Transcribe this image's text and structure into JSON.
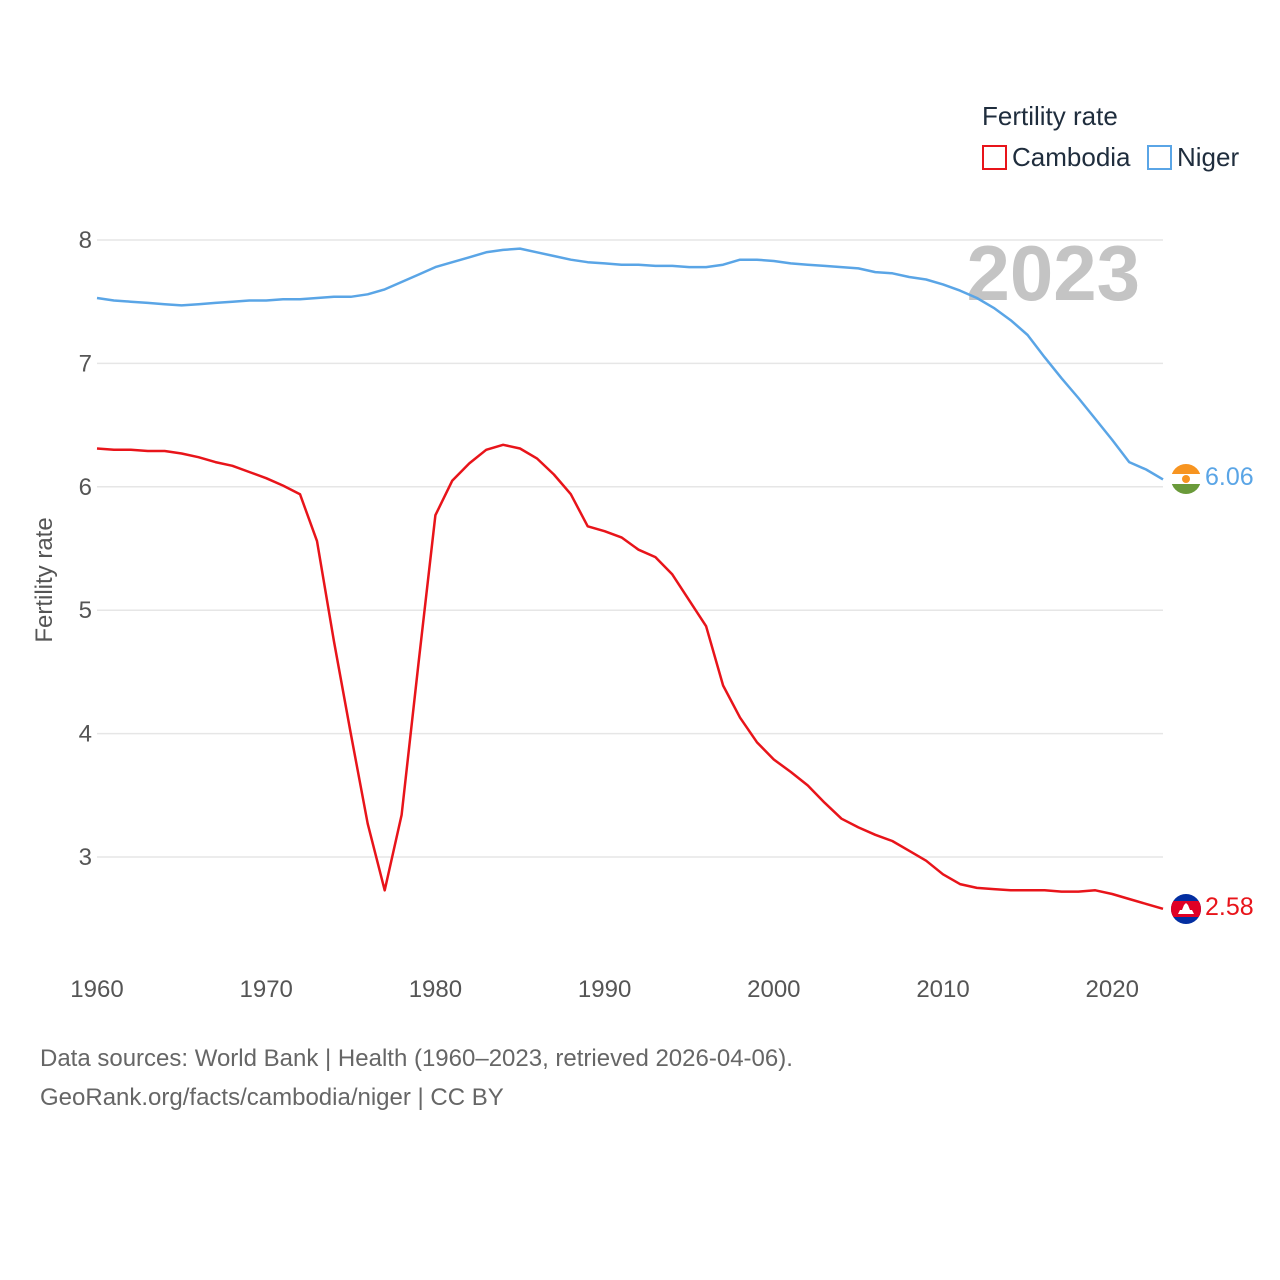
{
  "chart_data": {
    "type": "line",
    "title": "",
    "legend_title": "Fertility rate",
    "year_label": "2023",
    "xlabel": "",
    "ylabel": "Fertility rate",
    "xlim": [
      1960,
      2023
    ],
    "ylim": [
      2.4,
      8.0
    ],
    "x_ticks": [
      1960,
      1970,
      1980,
      1990,
      2000,
      2010,
      2020
    ],
    "y_ticks": [
      3,
      4,
      5,
      6,
      7,
      8
    ],
    "legend_position": "top-right",
    "x": [
      1960,
      1961,
      1962,
      1963,
      1964,
      1965,
      1966,
      1967,
      1968,
      1969,
      1970,
      1971,
      1972,
      1973,
      1974,
      1975,
      1976,
      1977,
      1978,
      1979,
      1980,
      1981,
      1982,
      1983,
      1984,
      1985,
      1986,
      1987,
      1988,
      1989,
      1990,
      1991,
      1992,
      1993,
      1994,
      1995,
      1996,
      1997,
      1998,
      1999,
      2000,
      2001,
      2002,
      2003,
      2004,
      2005,
      2006,
      2007,
      2008,
      2009,
      2010,
      2011,
      2012,
      2013,
      2014,
      2015,
      2016,
      2017,
      2018,
      2019,
      2020,
      2021,
      2022,
      2023
    ],
    "series": [
      {
        "name": "Cambodia",
        "color": "#e8141a",
        "end_label": "2.58",
        "flag": "cambodia-flag",
        "values": [
          6.31,
          6.3,
          6.3,
          6.29,
          6.29,
          6.27,
          6.24,
          6.2,
          6.17,
          6.12,
          6.07,
          6.01,
          5.94,
          5.56,
          4.75,
          4.0,
          3.27,
          2.73,
          3.34,
          4.57,
          5.77,
          6.05,
          6.19,
          6.3,
          6.34,
          6.31,
          6.23,
          6.1,
          5.94,
          5.68,
          5.64,
          5.59,
          5.49,
          5.43,
          5.29,
          5.08,
          4.87,
          4.39,
          4.13,
          3.93,
          3.79,
          3.69,
          3.58,
          3.44,
          3.31,
          3.24,
          3.18,
          3.13,
          3.05,
          2.97,
          2.86,
          2.78,
          2.75,
          2.74,
          2.73,
          2.73,
          2.73,
          2.72,
          2.72,
          2.73,
          2.7,
          2.66,
          2.62,
          2.58
        ]
      },
      {
        "name": "Niger",
        "color": "#5aa5e6",
        "end_label": "6.06",
        "flag": "niger-flag",
        "values": [
          7.53,
          7.51,
          7.5,
          7.49,
          7.48,
          7.47,
          7.48,
          7.49,
          7.5,
          7.51,
          7.51,
          7.52,
          7.52,
          7.53,
          7.54,
          7.54,
          7.56,
          7.6,
          7.66,
          7.72,
          7.78,
          7.82,
          7.86,
          7.9,
          7.92,
          7.93,
          7.9,
          7.87,
          7.84,
          7.82,
          7.81,
          7.8,
          7.8,
          7.79,
          7.79,
          7.78,
          7.78,
          7.8,
          7.84,
          7.84,
          7.83,
          7.81,
          7.8,
          7.79,
          7.78,
          7.77,
          7.74,
          7.73,
          7.7,
          7.68,
          7.64,
          7.59,
          7.53,
          7.45,
          7.35,
          7.23,
          7.05,
          6.88,
          6.72,
          6.55,
          6.38,
          6.2,
          6.14,
          6.06
        ]
      }
    ]
  },
  "footer": {
    "line1": "Data sources: World Bank | Health (1960–2023, retrieved 2026-04-06).",
    "line2": "GeoRank.org/facts/cambodia/niger | CC BY"
  }
}
